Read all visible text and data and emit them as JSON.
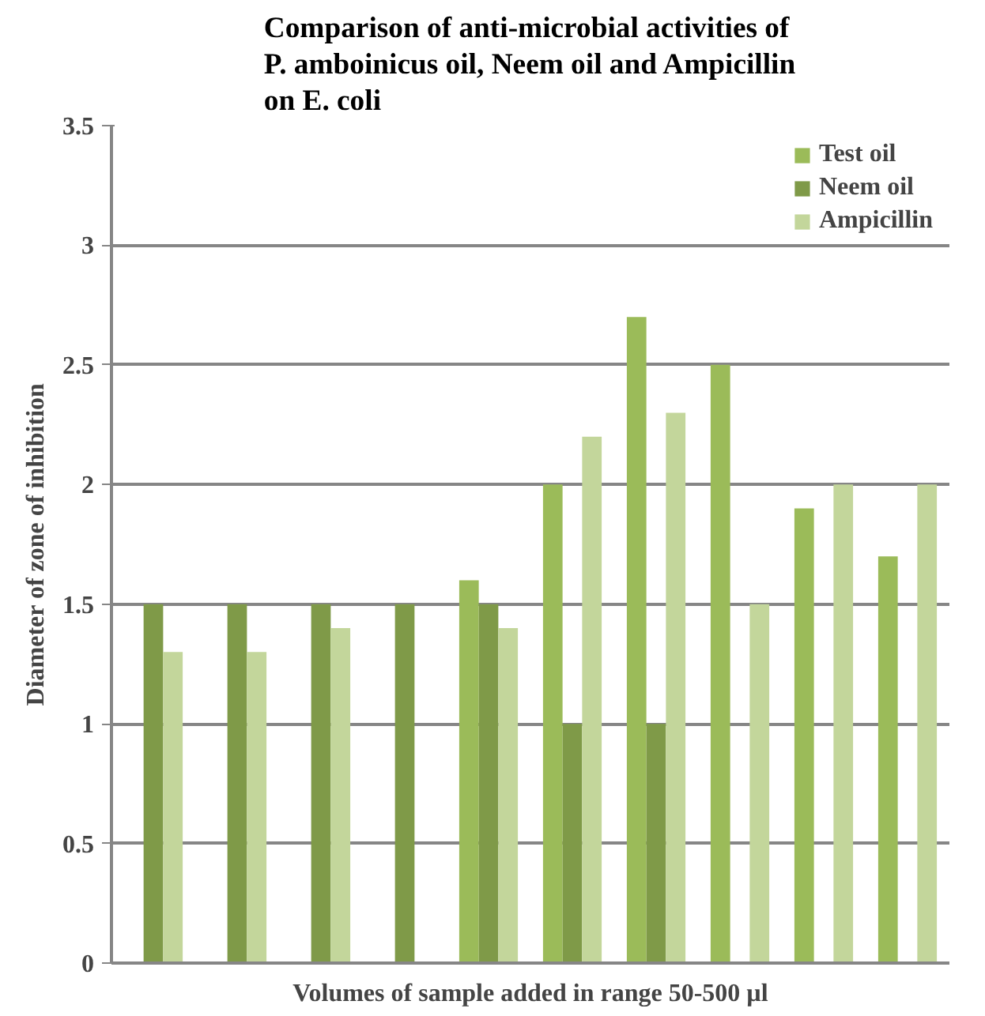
{
  "chart_data": {
    "type": "bar",
    "title": "Comparison of anti-microbial activities of\nP. amboinicus oil, Neem oil and Ampicillin\non E. coli",
    "xlabel": "Volumes of sample added in range 50-500 µl",
    "ylabel": "Diameter of zone of inhibition",
    "categories": [
      null,
      null,
      null,
      null,
      null,
      null,
      null,
      null,
      null,
      null
    ],
    "series": [
      {
        "name": "Test oil",
        "color": "#9bbb59",
        "values": [
          null,
          null,
          null,
          null,
          1.6,
          2.0,
          2.7,
          2.5,
          1.9,
          1.7
        ]
      },
      {
        "name": "Neem oil",
        "color": "#7f9a48",
        "values": [
          1.5,
          1.5,
          1.5,
          1.5,
          1.5,
          1.0,
          1.0,
          null,
          null,
          null
        ]
      },
      {
        "name": "Ampicillin",
        "color": "#c3d69b",
        "values": [
          1.3,
          1.3,
          1.4,
          null,
          1.4,
          2.2,
          2.3,
          1.5,
          2.0,
          2.0
        ]
      }
    ],
    "ylim": [
      0,
      3.5
    ],
    "yticks": [
      0,
      {
        "value": 0.5,
        "label": "0.5"
      },
      1,
      {
        "value": 1.5,
        "label": "1.5"
      },
      2,
      {
        "value": 2.5,
        "label": "2.5"
      },
      3,
      {
        "value": 3.5,
        "label": "3.5"
      }
    ],
    "grid": "y",
    "legend": "top right"
  }
}
